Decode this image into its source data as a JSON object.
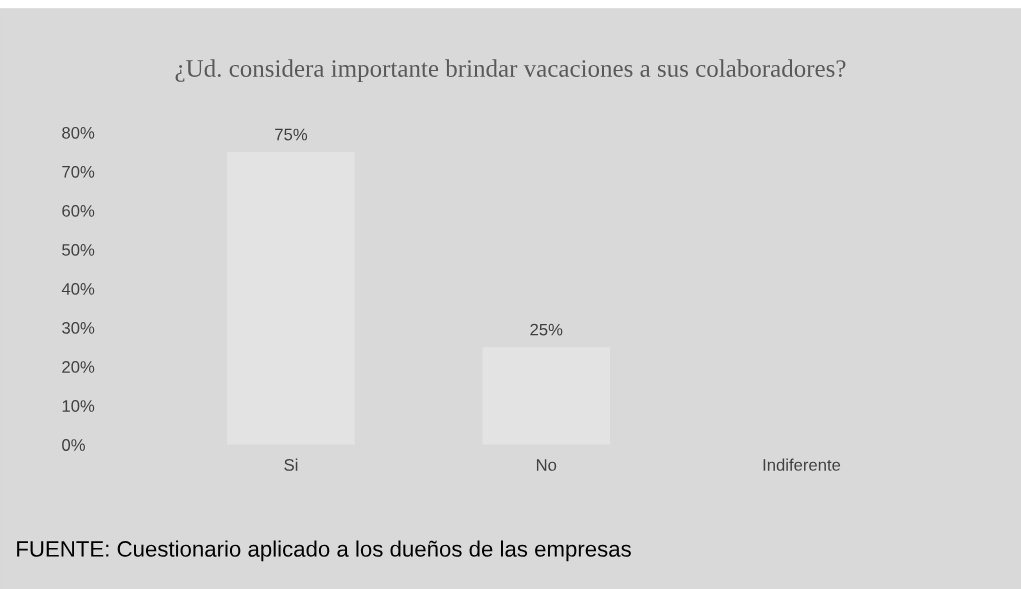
{
  "chart_data": {
    "type": "bar",
    "title": "¿Ud. considera importante brindar vacaciones a sus colaboradores?",
    "categories": [
      "Si",
      "No",
      "Indiferente"
    ],
    "values": [
      75,
      25,
      0
    ],
    "value_labels": [
      "75%",
      "25%",
      null
    ],
    "color": "#e3e3e3",
    "ylim": [
      0,
      80
    ],
    "yticks": [
      {
        "value": 0,
        "label": "0%"
      },
      {
        "value": 10,
        "label": "10%"
      },
      {
        "value": 20,
        "label": "20%"
      },
      {
        "value": 30,
        "label": "30%"
      },
      {
        "value": 40,
        "label": "40%"
      },
      {
        "value": 50,
        "label": "50%"
      },
      {
        "value": 60,
        "label": "60%"
      },
      {
        "value": 70,
        "label": "70%"
      },
      {
        "value": 80,
        "label": "80%"
      }
    ],
    "grid": false,
    "legend": false,
    "annotations": [
      "FUENTE: Cuestionario aplicado a los dueños de las empresas"
    ]
  }
}
